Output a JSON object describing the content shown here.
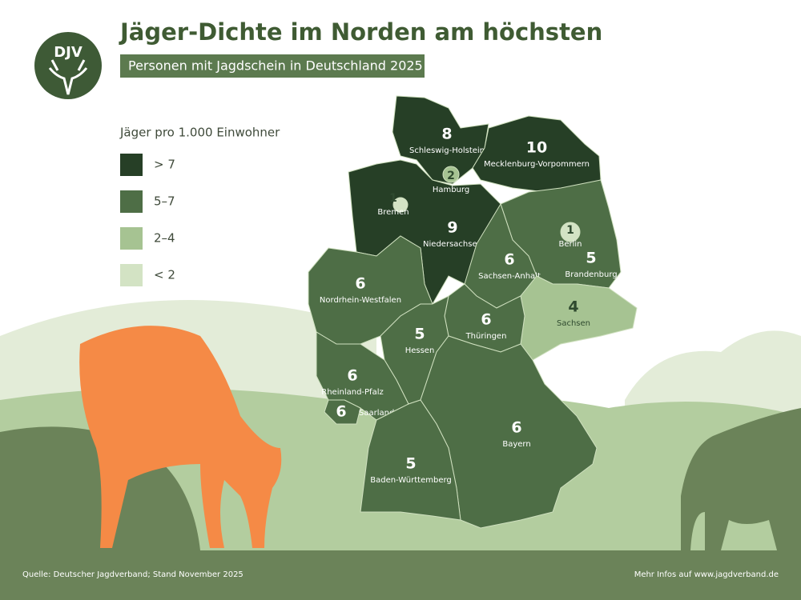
{
  "header": {
    "logo": "DJV",
    "title": "Jäger-Dichte im Norden am höchsten",
    "subtitle": "Personen mit Jagdschein in Deutschland 2025"
  },
  "legend": {
    "title": "Jäger pro 1.000 Einwohner",
    "items": [
      {
        "label": "> 7",
        "color": "#263f26"
      },
      {
        "label": "5–7",
        "color": "#4e6e46"
      },
      {
        "label": "2–4",
        "color": "#a6c392"
      },
      {
        "label": "< 2",
        "color": "#d3e3c4"
      }
    ]
  },
  "states": [
    {
      "name": "Schleswig-Holstein",
      "value": 8,
      "color": "#263f26"
    },
    {
      "name": "Mecklenburg-Vorpommern",
      "value": 10,
      "color": "#263f26"
    },
    {
      "name": "Niedersachsen",
      "value": 9,
      "color": "#263f26"
    },
    {
      "name": "Brandenburg",
      "value": 5,
      "color": "#4e6e46"
    },
    {
      "name": "Sachsen-Anhalt",
      "value": 6,
      "color": "#4e6e46"
    },
    {
      "name": "Sachsen",
      "value": 4,
      "color": "#a6c392"
    },
    {
      "name": "Thüringen",
      "value": 6,
      "color": "#4e6e46"
    },
    {
      "name": "Nordrhein-Westfalen",
      "value": 6,
      "color": "#4e6e46"
    },
    {
      "name": "Hessen",
      "value": 5,
      "color": "#4e6e46"
    },
    {
      "name": "Rheinland-Pfalz",
      "value": 6,
      "color": "#4e6e46"
    },
    {
      "name": "Saarland",
      "value": 6,
      "color": "#4e6e46"
    },
    {
      "name": "Bayern",
      "value": 6,
      "color": "#4e6e46"
    },
    {
      "name": "Baden-Württemberg",
      "value": 5,
      "color": "#4e6e46"
    },
    {
      "name": "Hamburg",
      "value": 2,
      "color": "#a6c392"
    },
    {
      "name": "Bremen",
      "value": 1,
      "color": "#d3e3c4"
    },
    {
      "name": "Berlin",
      "value": 1,
      "color": "#d3e3c4"
    }
  ],
  "footer": {
    "source": "Quelle: Deutscher Jagdverband; Stand November 2025",
    "link": "Mehr Infos auf www.jagdverband.de"
  }
}
